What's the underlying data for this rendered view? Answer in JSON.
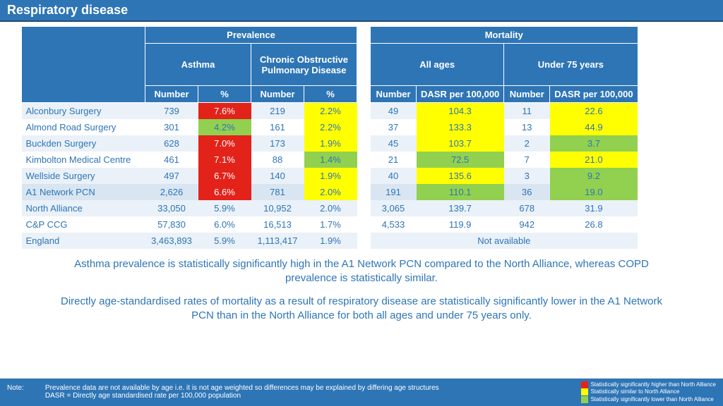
{
  "title": "Respiratory disease",
  "colors": {
    "header_bg": "#2e75b6",
    "header_text": "#ffffff",
    "row_odd": "#eaf1f8",
    "row_even": "#ffffff",
    "row_highlight": "#d9e6f2",
    "cell_red": "#e32219",
    "cell_green": "#92d050",
    "cell_yellow": "#ffff00",
    "text_blue": "#2e75b6"
  },
  "prevalence": {
    "group_header": "Prevalence",
    "subgroups": [
      {
        "label": "Asthma",
        "cols": [
          "Number",
          "%"
        ]
      },
      {
        "label": "Chronic Obstructive Pulmonary Disease",
        "cols": [
          "Number",
          "%"
        ]
      }
    ]
  },
  "mortality": {
    "group_header": "Mortality",
    "subgroups": [
      {
        "label": "All ages",
        "cols": [
          "Number",
          "DASR per 100,000"
        ]
      },
      {
        "label": "Under 75 years",
        "cols": [
          "Number",
          "DASR per 100,000"
        ]
      }
    ]
  },
  "rows": [
    {
      "label": "Alconbury Surgery",
      "hl": false,
      "prev": [
        {
          "v": "739"
        },
        {
          "v": "7.6%",
          "c": "red"
        },
        {
          "v": "219"
        },
        {
          "v": "2.2%",
          "c": "yellow"
        }
      ],
      "mort": [
        {
          "v": "49"
        },
        {
          "v": "104.3",
          "c": "yellow"
        },
        {
          "v": "11"
        },
        {
          "v": "22.6",
          "c": "yellow"
        }
      ]
    },
    {
      "label": "Almond Road Surgery",
      "hl": false,
      "prev": [
        {
          "v": "301"
        },
        {
          "v": "4.2%",
          "c": "green"
        },
        {
          "v": "161"
        },
        {
          "v": "2.2%",
          "c": "yellow"
        }
      ],
      "mort": [
        {
          "v": "37"
        },
        {
          "v": "133.3",
          "c": "yellow"
        },
        {
          "v": "13"
        },
        {
          "v": "44.9",
          "c": "yellow"
        }
      ]
    },
    {
      "label": "Buckden Surgery",
      "hl": false,
      "prev": [
        {
          "v": "628"
        },
        {
          "v": "7.0%",
          "c": "red"
        },
        {
          "v": "173"
        },
        {
          "v": "1.9%",
          "c": "yellow"
        }
      ],
      "mort": [
        {
          "v": "45"
        },
        {
          "v": "103.7",
          "c": "yellow"
        },
        {
          "v": "2"
        },
        {
          "v": "3.7",
          "c": "green"
        }
      ]
    },
    {
      "label": "Kimbolton Medical Centre",
      "hl": false,
      "prev": [
        {
          "v": "461"
        },
        {
          "v": "7.1%",
          "c": "red"
        },
        {
          "v": "88"
        },
        {
          "v": "1.4%",
          "c": "green"
        }
      ],
      "mort": [
        {
          "v": "21"
        },
        {
          "v": "72.5",
          "c": "green"
        },
        {
          "v": "7"
        },
        {
          "v": "21.0",
          "c": "yellow"
        }
      ]
    },
    {
      "label": "Wellside Surgery",
      "hl": false,
      "prev": [
        {
          "v": "497"
        },
        {
          "v": "6.7%",
          "c": "red"
        },
        {
          "v": "140"
        },
        {
          "v": "1.9%",
          "c": "yellow"
        }
      ],
      "mort": [
        {
          "v": "40"
        },
        {
          "v": "135.6",
          "c": "yellow"
        },
        {
          "v": "3"
        },
        {
          "v": "9.2",
          "c": "green"
        }
      ]
    },
    {
      "label": "A1 Network PCN",
      "hl": true,
      "prev": [
        {
          "v": "2,626"
        },
        {
          "v": "6.6%",
          "c": "red"
        },
        {
          "v": "781"
        },
        {
          "v": "2.0%",
          "c": "yellow"
        }
      ],
      "mort": [
        {
          "v": "191"
        },
        {
          "v": "110.1",
          "c": "green"
        },
        {
          "v": "36"
        },
        {
          "v": "19.0",
          "c": "green"
        }
      ]
    },
    {
      "label": "North Alliance",
      "hl": false,
      "prev": [
        {
          "v": "33,050"
        },
        {
          "v": "5.9%"
        },
        {
          "v": "10,952"
        },
        {
          "v": "2.0%"
        }
      ],
      "mort": [
        {
          "v": "3,065"
        },
        {
          "v": "139.7"
        },
        {
          "v": "678"
        },
        {
          "v": "31.9"
        }
      ]
    },
    {
      "label": "C&P CCG",
      "hl": false,
      "prev": [
        {
          "v": "57,830"
        },
        {
          "v": "6.0%"
        },
        {
          "v": "16,513"
        },
        {
          "v": "1.7%"
        }
      ],
      "mort": [
        {
          "v": "4,533"
        },
        {
          "v": "119.9"
        },
        {
          "v": "942"
        },
        {
          "v": "26.8"
        }
      ]
    },
    {
      "label": "England",
      "hl": false,
      "prev": [
        {
          "v": "3,463,893"
        },
        {
          "v": "5.9%"
        },
        {
          "v": "1,113,417"
        },
        {
          "v": "1.9%"
        }
      ],
      "mort_na": "Not available"
    }
  ],
  "commentary": [
    "Asthma prevalence is statistically significantly high in the A1 Network PCN compared to the North Alliance, whereas COPD prevalence is statistically similar.",
    "Directly age-standardised rates of mortality as a result of respiratory disease are statistically significantly lower in the A1 Network PCN than in the North Alliance for both all ages and under 75 years only."
  ],
  "footer": {
    "note_label": "Note:",
    "note_lines": [
      "Prevalence data are not available by age i.e. it is not age weighted so differences may be explained by differing age structures",
      "DASR = Directly age standardised rate per 100,000 population"
    ],
    "legend": [
      {
        "c": "red",
        "t": "Statistically significantly higher than North Alliance"
      },
      {
        "c": "yellow",
        "t": "Statistically similar to North Alliance"
      },
      {
        "c": "green",
        "t": "Statistically significantly lower than North Alliance"
      }
    ]
  }
}
